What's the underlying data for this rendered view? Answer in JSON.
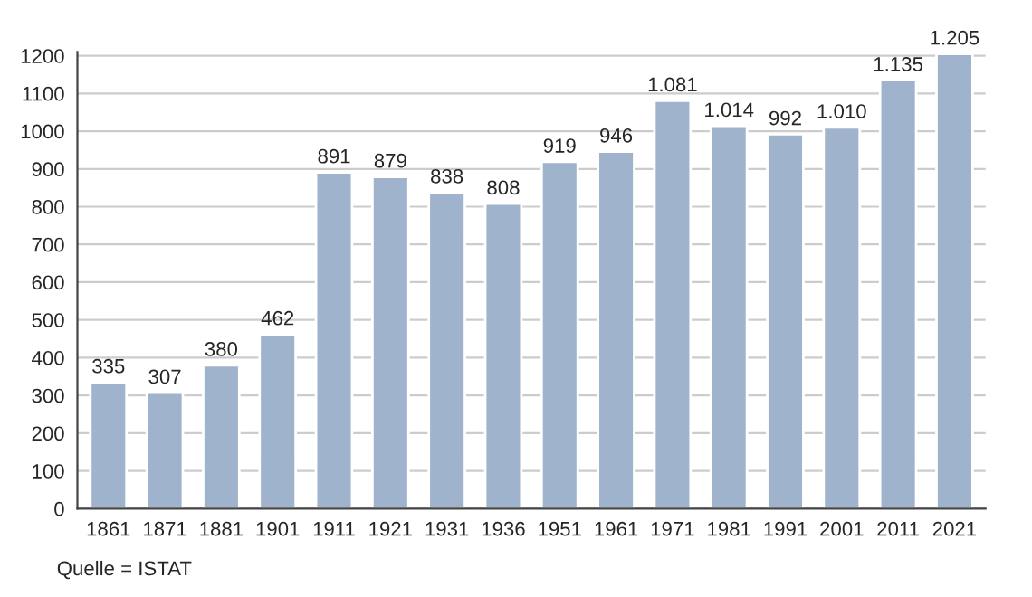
{
  "chart_data": {
    "type": "bar",
    "categories": [
      "1861",
      "1871",
      "1881",
      "1901",
      "1911",
      "1921",
      "1931",
      "1936",
      "1951",
      "1961",
      "1971",
      "1981",
      "1991",
      "2001",
      "2011",
      "2021"
    ],
    "values": [
      335,
      307,
      380,
      462,
      891,
      879,
      838,
      808,
      919,
      946,
      1081,
      1014,
      992,
      1010,
      1135,
      1205
    ],
    "value_labels": [
      "335",
      "307",
      "380",
      "462",
      "891",
      "879",
      "838",
      "808",
      "919",
      "946",
      "1.081",
      "1.014",
      "992",
      "1.010",
      "1.135",
      "1.205"
    ],
    "color": "#9fb4cc",
    "ylim": [
      0,
      1210
    ],
    "yticks": [
      0,
      100,
      200,
      300,
      400,
      500,
      600,
      700,
      800,
      900,
      1000,
      1100,
      1200
    ],
    "grid": "y",
    "annotations": [
      "Quelle = ISTAT"
    ]
  }
}
